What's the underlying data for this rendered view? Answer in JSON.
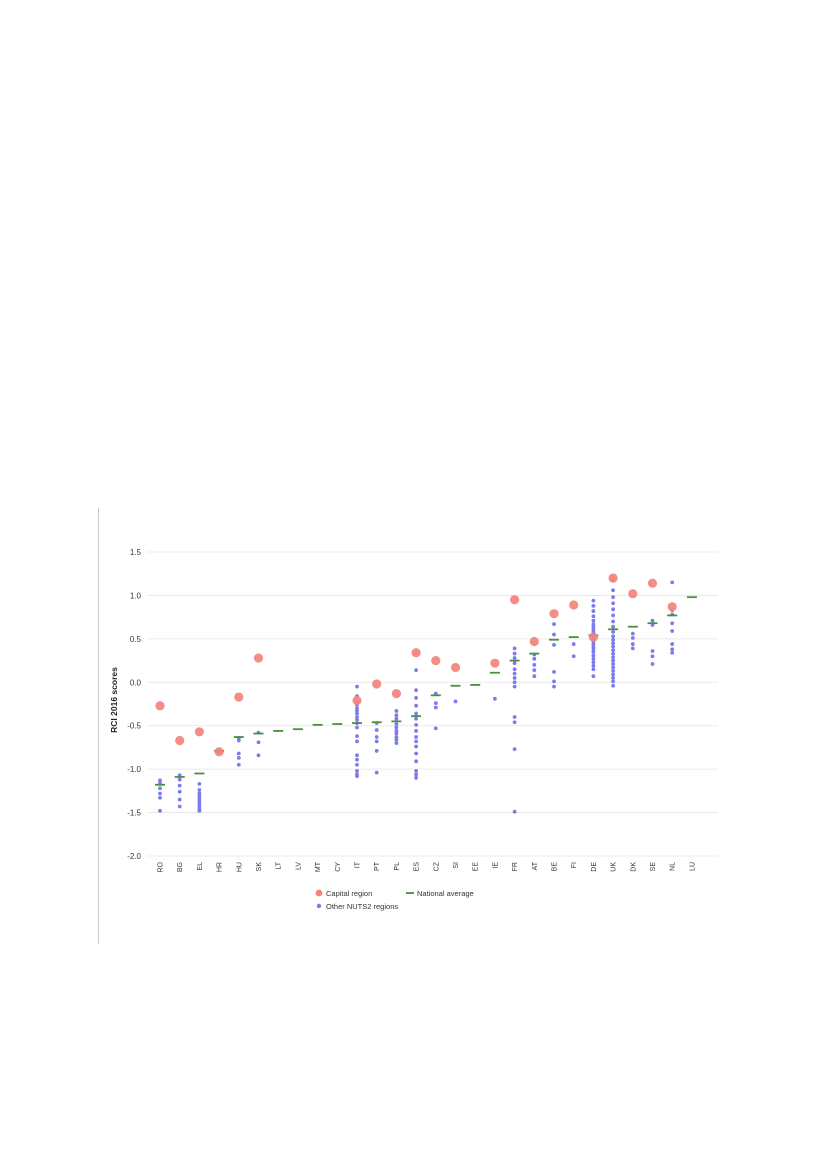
{
  "chart_data": {
    "type": "scatter",
    "ylabel": "RCI 2016 scores",
    "xlabel": "",
    "ylim": [
      -2.0,
      1.5
    ],
    "yticks": [
      "1.5",
      "1.0",
      "0.5",
      "0.0",
      "-0.5",
      "-1.0",
      "-1.5",
      "-2.0"
    ],
    "grid": true,
    "legend_position": "bottom",
    "colors": {
      "capital": "#f4837d",
      "national": "#4a8f3c",
      "other": "#7b7bef",
      "grid": "#e4e4e4"
    },
    "categories": [
      "RO",
      "BG",
      "EL",
      "HR",
      "HU",
      "SK",
      "LT",
      "LV",
      "MT",
      "CY",
      "IT",
      "PT",
      "PL",
      "ES",
      "CZ",
      "SI",
      "EE",
      "IE",
      "FR",
      "AT",
      "BE",
      "FI",
      "DE",
      "UK",
      "DK",
      "SE",
      "NL",
      "LU"
    ],
    "series": [
      {
        "name": "Capital region",
        "marker": "large-circle",
        "values": [
          -0.27,
          -0.67,
          -0.57,
          -0.8,
          -0.17,
          0.28,
          null,
          null,
          null,
          null,
          -0.21,
          -0.02,
          -0.13,
          0.34,
          0.25,
          0.17,
          null,
          0.22,
          0.95,
          0.47,
          0.79,
          0.89,
          0.52,
          1.2,
          1.02,
          1.14,
          0.87,
          null
        ]
      },
      {
        "name": "National average",
        "marker": "dash",
        "values": [
          -1.18,
          -1.09,
          -1.05,
          -0.79,
          -0.63,
          -0.59,
          -0.56,
          -0.54,
          -0.49,
          -0.48,
          -0.47,
          -0.46,
          -0.45,
          -0.39,
          -0.15,
          -0.04,
          -0.03,
          0.11,
          0.25,
          0.33,
          0.49,
          0.52,
          0.54,
          0.61,
          0.64,
          0.68,
          0.77,
          0.98
        ]
      },
      {
        "name": "Other NUTS2 regions",
        "marker": "small-circle",
        "points": {
          "RO": [
            -1.13,
            -1.16,
            -1.22,
            -1.28,
            -1.33,
            -1.48
          ],
          "BG": [
            -1.07,
            -1.12,
            -1.19,
            -1.26,
            -1.35,
            -1.43
          ],
          "EL": [
            -1.17,
            -1.24,
            -1.28,
            -1.31,
            -1.34,
            -1.37,
            -1.4,
            -1.43,
            -1.46,
            -1.48
          ],
          "HR": [
            -0.8
          ],
          "HU": [
            -0.64,
            -0.67,
            -0.82,
            -0.87,
            -0.95
          ],
          "SK": [
            -0.58,
            -0.69,
            -0.84
          ],
          "IT": [
            -0.05,
            -0.16,
            -0.22,
            -0.26,
            -0.3,
            -0.33,
            -0.36,
            -0.4,
            -0.43,
            -0.47,
            -0.52,
            -0.62,
            -0.68,
            -0.84,
            -0.89,
            -0.95,
            -1.02,
            -1.06,
            -1.08
          ],
          "PT": [
            -0.47,
            -0.55,
            -0.63,
            -0.68,
            -0.79,
            -1.04
          ],
          "PL": [
            -0.33,
            -0.38,
            -0.42,
            -0.48,
            -0.52,
            -0.56,
            -0.59,
            -0.63,
            -0.66,
            -0.7
          ],
          "ES": [
            0.14,
            -0.09,
            -0.18,
            -0.27,
            -0.36,
            -0.42,
            -0.49,
            -0.56,
            -0.63,
            -0.68,
            -0.74,
            -0.82,
            -0.91,
            -1.02,
            -1.06,
            -1.1
          ],
          "CZ": [
            -0.13,
            -0.24,
            -0.29,
            -0.53
          ],
          "SI": [
            -0.22
          ],
          "IE": [
            -0.19
          ],
          "FR": [
            0.39,
            0.33,
            0.28,
            0.22,
            0.15,
            0.1,
            0.05,
            0.0,
            -0.05,
            -0.4,
            -0.46,
            -0.77,
            -1.49
          ],
          "AT": [
            0.32,
            0.27,
            0.2,
            0.14,
            0.07
          ],
          "BE": [
            0.67,
            0.55,
            0.43,
            0.12,
            0.01,
            -0.05
          ],
          "FI": [
            0.44,
            0.3
          ],
          "DE": [
            0.94,
            0.88,
            0.82,
            0.76,
            0.71,
            0.67,
            0.64,
            0.61,
            0.58,
            0.56,
            0.53,
            0.5,
            0.47,
            0.44,
            0.41,
            0.38,
            0.35,
            0.31,
            0.27,
            0.23,
            0.19,
            0.15,
            0.07
          ],
          "UK": [
            1.17,
            1.06,
            0.98,
            0.91,
            0.84,
            0.77,
            0.7,
            0.64,
            0.58,
            0.53,
            0.49,
            0.45,
            0.41,
            0.37,
            0.33,
            0.29,
            0.25,
            0.21,
            0.17,
            0.13,
            0.09,
            0.05,
            0.01,
            -0.04
          ],
          "DK": [
            0.56,
            0.51,
            0.44,
            0.39
          ],
          "SE": [
            0.71,
            0.66,
            0.36,
            0.3,
            0.21
          ],
          "NL": [
            1.15,
            0.83,
            0.78,
            0.68,
            0.59,
            0.44,
            0.38,
            0.34
          ],
          "LU": []
        }
      }
    ]
  }
}
